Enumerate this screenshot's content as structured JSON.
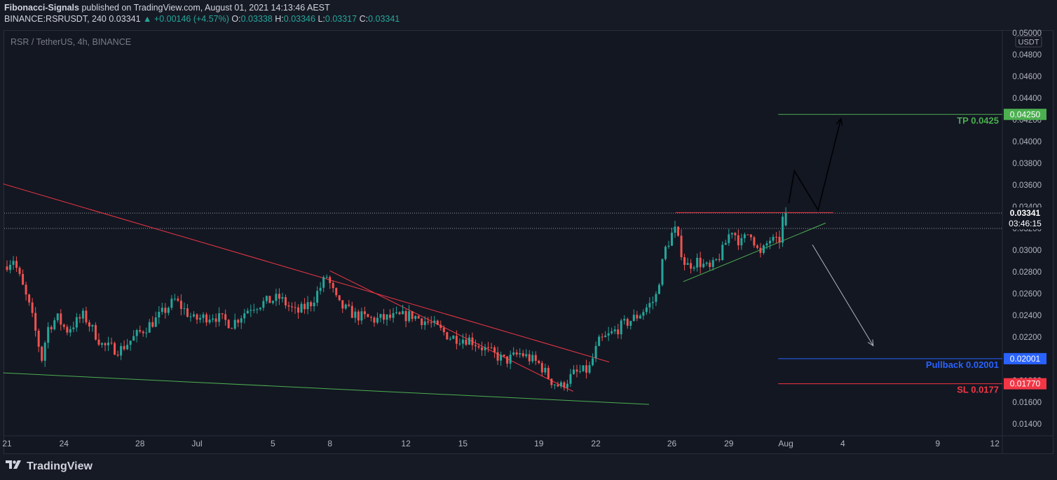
{
  "header": {
    "publisher": "Fibonacci-Signals",
    "published_text": "published on TradingView.com, August 01, 2021 14:13:46 AEST",
    "symbol": "BINANCE:RSRUSDT, 240",
    "last": "0.03341",
    "change_arrow": "▲",
    "change": "+0.00146 (+4.57%)",
    "ohlc": {
      "o_label": "O:",
      "o": "0.03338",
      "h_label": "H:",
      "h": "0.03346",
      "l_label": "L:",
      "l": "0.03317",
      "c_label": "C:",
      "c": "0.03341"
    }
  },
  "footer": {
    "brand": "TradingView",
    "logo_icon": "tradingview-logo-icon"
  },
  "chart_data": {
    "type": "candlestick",
    "title": "RSR / TetherUS, 4h, BINANCE",
    "currency_label": "USDT",
    "y_ticks": [
      "0.05000",
      "0.04800",
      "0.04600",
      "0.04400",
      "0.04200",
      "0.04000",
      "0.03800",
      "0.03600",
      "0.03400",
      "0.03200",
      "0.03000",
      "0.02800",
      "0.02600",
      "0.02400",
      "0.02200",
      "0.02000",
      "0.01800",
      "0.01600",
      "0.01400"
    ],
    "ylim": [
      0.013,
      0.051
    ],
    "x_ticks": [
      {
        "label": "21",
        "day": 0
      },
      {
        "label": "24",
        "day": 3
      },
      {
        "label": "28",
        "day": 7
      },
      {
        "label": "Jul",
        "day": 10
      },
      {
        "label": "5",
        "day": 14
      },
      {
        "label": "8",
        "day": 17
      },
      {
        "label": "12",
        "day": 21
      },
      {
        "label": "15",
        "day": 24
      },
      {
        "label": "19",
        "day": 28
      },
      {
        "label": "22",
        "day": 31
      },
      {
        "label": "26",
        "day": 35
      },
      {
        "label": "29",
        "day": 38
      },
      {
        "label": "Aug",
        "day": 41
      },
      {
        "label": "4",
        "day": 44
      },
      {
        "label": "9",
        "day": 49
      },
      {
        "label": "12",
        "day": 52
      }
    ],
    "price_anchors": [
      [
        0.0,
        0.0285
      ],
      [
        0.5,
        0.0292
      ],
      [
        1.4,
        0.0245
      ],
      [
        2.0,
        0.02
      ],
      [
        2.3,
        0.0228
      ],
      [
        2.8,
        0.0238
      ],
      [
        3.3,
        0.0226
      ],
      [
        4.2,
        0.024
      ],
      [
        5.2,
        0.0212
      ],
      [
        6.1,
        0.0208
      ],
      [
        7.0,
        0.0222
      ],
      [
        8.0,
        0.0236
      ],
      [
        9.0,
        0.0254
      ],
      [
        10.0,
        0.0236
      ],
      [
        11.0,
        0.024
      ],
      [
        12.0,
        0.0232
      ],
      [
        13.0,
        0.0248
      ],
      [
        14.5,
        0.0256
      ],
      [
        15.4,
        0.0242
      ],
      [
        16.2,
        0.0252
      ],
      [
        17.0,
        0.0276
      ],
      [
        17.6,
        0.025
      ],
      [
        18.5,
        0.024
      ],
      [
        19.5,
        0.0236
      ],
      [
        20.5,
        0.0238
      ],
      [
        21.5,
        0.024
      ],
      [
        22.5,
        0.0232
      ],
      [
        23.5,
        0.022
      ],
      [
        24.5,
        0.0218
      ],
      [
        25.4,
        0.0208
      ],
      [
        26.4,
        0.0198
      ],
      [
        27.2,
        0.0205
      ],
      [
        28.2,
        0.0195
      ],
      [
        28.8,
        0.018
      ],
      [
        29.3,
        0.0174
      ],
      [
        30.0,
        0.0186
      ],
      [
        30.8,
        0.019
      ],
      [
        31.3,
        0.0215
      ],
      [
        31.9,
        0.0222
      ],
      [
        32.5,
        0.023
      ],
      [
        33.4,
        0.024
      ],
      [
        34.3,
        0.0255
      ],
      [
        34.8,
        0.03
      ],
      [
        35.3,
        0.032
      ],
      [
        35.9,
        0.0285
      ],
      [
        36.5,
        0.029
      ],
      [
        37.2,
        0.0282
      ],
      [
        37.8,
        0.0298
      ],
      [
        38.3,
        0.032
      ],
      [
        38.8,
        0.0306
      ],
      [
        39.3,
        0.0318
      ],
      [
        39.8,
        0.0294
      ],
      [
        40.3,
        0.031
      ],
      [
        40.8,
        0.0306
      ],
      [
        41.05,
        0.03341
      ]
    ],
    "last_price": 0.03341,
    "last_price_label": "0.03341",
    "countdown": "03:46:15",
    "levels": [
      {
        "name": "TP",
        "label": "TP 0.0425",
        "price": 0.0425,
        "axis_label": "0.04250",
        "color": "#4caf50",
        "start_day": 40.6,
        "end_day": 52.8
      },
      {
        "name": "Pullback",
        "label": "Pullback 0.02001",
        "price": 0.02001,
        "axis_label": "0.02001",
        "color": "#2962ff",
        "start_day": 40.6,
        "end_day": 52.8
      },
      {
        "name": "SL",
        "label": "SL 0.0177",
        "price": 0.0177,
        "axis_label": "0.01770",
        "color": "#f23645",
        "start_day": 40.6,
        "end_day": 52.8
      }
    ],
    "trendlines": [
      {
        "name": "long-falling-resistance",
        "color": "#f23645",
        "p1": [
          -0.2,
          0.0361
        ],
        "p2": [
          31.7,
          0.0197
        ]
      },
      {
        "name": "local-falling-resistance",
        "color": "#f23645",
        "p1": [
          17.0,
          0.0281
        ],
        "p2": [
          29.8,
          0.017
        ]
      },
      {
        "name": "long-support",
        "color": "#4caf50",
        "p1": [
          -0.2,
          0.0187
        ],
        "p2": [
          33.8,
          0.0158
        ]
      },
      {
        "name": "rising-support",
        "color": "#4caf50",
        "p1": [
          35.6,
          0.0271
        ],
        "p2": [
          43.1,
          0.0325
        ]
      },
      {
        "name": "horizontal-resistance",
        "color": "#f23645",
        "p1": [
          35.2,
          0.03346
        ],
        "p2": [
          43.5,
          0.03346
        ]
      }
    ],
    "projection_bull": [
      [
        41.15,
        0.0343
      ],
      [
        41.45,
        0.0373
      ],
      [
        42.7,
        0.0337
      ],
      [
        43.9,
        0.0421
      ]
    ],
    "projection_bear": [
      [
        42.4,
        0.0305
      ],
      [
        45.6,
        0.0212
      ]
    ],
    "dotted_levels": [
      0.03341,
      0.032
    ],
    "colors": {
      "up": "#26a69a",
      "down": "#ef5350",
      "background": "#131722",
      "text": "#b2b5be",
      "grid": "#1e222d"
    }
  }
}
